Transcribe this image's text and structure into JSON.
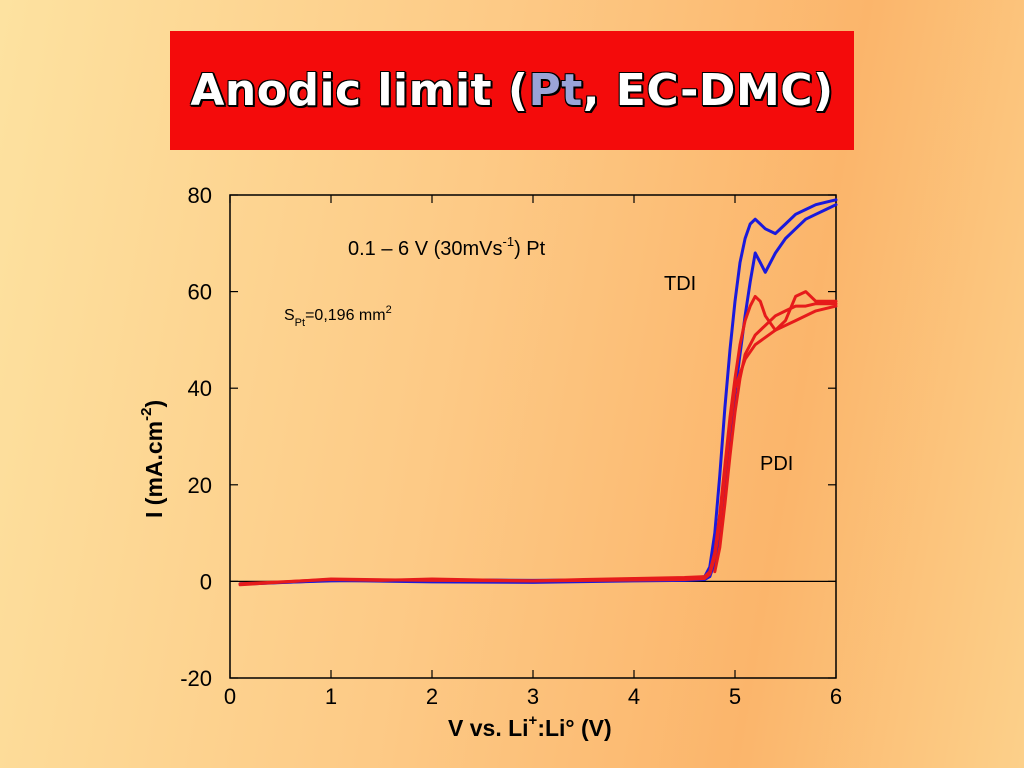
{
  "slide": {
    "title_part1": "Anodic limit (",
    "title_pt": "Pt",
    "title_part2": ", EC-DMC)",
    "colors": {
      "banner": "#f40b0b",
      "title_text": "#ffffff",
      "title_pt": "#9aa4d8"
    }
  },
  "chart_data": {
    "type": "line",
    "xlabel_main": "V vs. Li",
    "xlabel_sup": "+",
    "xlabel_rest": ":Li° (V)",
    "ylabel_main": "I  (mA.cm",
    "ylabel_sup": "-2",
    "ylabel_end": ")",
    "xlim": [
      0,
      6
    ],
    "ylim": [
      -20,
      80
    ],
    "x_ticks": [
      0,
      1,
      2,
      3,
      4,
      5,
      6
    ],
    "y_ticks": [
      -20,
      0,
      20,
      40,
      60,
      80
    ],
    "grid": false,
    "zero_line": true,
    "annotations": {
      "conditions_a": "0.1 – 6 V (30mVs",
      "conditions_sup": "-1",
      "conditions_b": ")  Pt",
      "area_S": "S",
      "area_sub": "Pt",
      "area_val": "=0,196 mm",
      "area_sup": "2"
    },
    "series": [
      {
        "name": "TDI",
        "color": "#1a1adc",
        "curves": [
          {
            "x": [
              0.1,
              0.5,
              1,
              1.5,
              2,
              2.5,
              3,
              3.5,
              4,
              4.5,
              4.7,
              4.75,
              4.8,
              4.85,
              4.9,
              4.95,
              5.0,
              5.05,
              5.1,
              5.15,
              5.2,
              5.3,
              5.4,
              5.5,
              5.6,
              5.7,
              5.8,
              5.9,
              6.0
            ],
            "y": [
              -0.5,
              -0.2,
              0.1,
              0.2,
              0.1,
              0.3,
              0.2,
              0.3,
              0.4,
              0.5,
              1,
              3,
              10,
              22,
              36,
              48,
              58,
              66,
              71,
              74,
              75,
              73,
              72,
              74,
              76,
              77,
              78,
              78.5,
              79
            ]
          },
          {
            "x": [
              6.0,
              5.9,
              5.8,
              5.7,
              5.6,
              5.5,
              5.4,
              5.3,
              5.25,
              5.2,
              5.15,
              5.1,
              5.05,
              5.0,
              4.95,
              4.9,
              4.85,
              4.8,
              4.75,
              4.7,
              4.5,
              4,
              3,
              2,
              1,
              0.1
            ],
            "y": [
              78,
              77,
              76,
              75,
              73,
              71,
              68,
              64,
              66,
              68,
              62,
              55,
              47,
              39,
              30,
              20,
              11,
              4,
              1,
              0.4,
              0.2,
              0.1,
              -0.2,
              -0.1,
              0.2,
              -0.6
            ]
          }
        ]
      },
      {
        "name": "PDI",
        "color": "#e61b1b",
        "curves": [
          {
            "x": [
              0.1,
              0.5,
              1,
              1.5,
              2,
              2.5,
              3,
              3.5,
              4,
              4.5,
              4.7,
              4.75,
              4.8,
              4.85,
              4.9,
              4.95,
              5.0,
              5.05,
              5.1,
              5.15,
              5.2,
              5.25,
              5.3,
              5.4,
              5.5,
              5.6,
              5.7,
              5.8,
              6.0
            ],
            "y": [
              -0.5,
              -0.1,
              0.4,
              0.2,
              0.5,
              0.3,
              0.1,
              0.4,
              0.6,
              0.8,
              1,
              2,
              6,
              14,
              24,
              34,
              42,
              49,
              54,
              57,
              59,
              58,
              55,
              52,
              54,
              59,
              60,
              58,
              58
            ]
          },
          {
            "x": [
              6.0,
              5.8,
              5.6,
              5.4,
              5.2,
              5.1,
              5.0,
              4.95,
              4.9,
              4.85,
              4.8,
              4.75,
              4.7,
              4.5,
              4,
              3,
              2,
              1,
              0.1
            ],
            "y": [
              57,
              56,
              54,
              52,
              49,
              46,
              40,
              32,
              22,
              12,
              5,
              1.5,
              0.6,
              0.4,
              0.3,
              0.1,
              0.2,
              0.5,
              -0.7
            ]
          },
          {
            "x": [
              4.8,
              4.85,
              4.9,
              4.95,
              5.0,
              5.05,
              5.1,
              5.2,
              5.3,
              5.4,
              5.5,
              5.6,
              5.7,
              5.8,
              6.0
            ],
            "y": [
              2,
              7,
              16,
              26,
              35,
              42,
              47,
              51,
              53,
              55,
              56,
              57,
              57,
              57.5,
              57.5
            ]
          }
        ]
      }
    ],
    "series_label_positions_words": {
      "TDI": "upper-right",
      "PDI": "right-middle"
    }
  }
}
